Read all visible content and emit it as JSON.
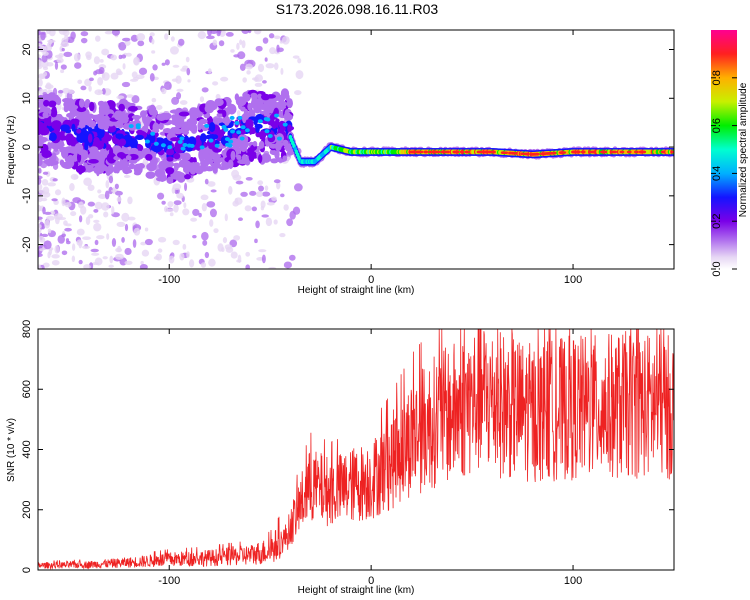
{
  "title": "S173.2026.098.16.11.R03",
  "chart_data": [
    {
      "type": "heatmap",
      "xlabel": "Height of straight line (km)",
      "ylabel": "Frequency (Hz)",
      "xlim": [
        -165,
        150
      ],
      "ylim": [
        -25,
        24
      ],
      "xticks": [
        -100,
        0,
        100
      ],
      "yticks": [
        -20,
        -10,
        0,
        10,
        20
      ],
      "colorbar": {
        "label": "Normalized spectral amplitude",
        "range": [
          0,
          1
        ],
        "ticks": [
          "0.0",
          "0.2",
          "0.4",
          "0.6",
          "0.8"
        ],
        "tick_values": [
          0.0,
          0.2,
          0.4,
          0.6,
          0.8
        ]
      },
      "ridge": {
        "description_points_x": [
          -165,
          -140,
          -120,
          -100,
          -80,
          -60,
          -42,
          -35,
          -28,
          -20,
          -10,
          0,
          20,
          40,
          60,
          80,
          100,
          120,
          150
        ],
        "description_points_y": [
          4,
          2,
          2,
          0,
          2,
          4,
          4,
          -3,
          -3,
          0,
          -1,
          -1,
          -1,
          -1,
          -1,
          -1.5,
          -1,
          -1,
          -1
        ]
      }
    },
    {
      "type": "line",
      "xlabel": "Height of straight line (km)",
      "ylabel": "SNR (10 * v/v)",
      "xlim": [
        -165,
        150
      ],
      "ylim": [
        0,
        800
      ],
      "xticks": [
        -100,
        0,
        100
      ],
      "yticks": [
        0,
        200,
        400,
        600,
        800
      ],
      "series": [
        {
          "name": "SNR",
          "color": "#ee2222",
          "envelope_x": [
            -165,
            -140,
            -120,
            -100,
            -80,
            -60,
            -50,
            -42,
            -35,
            -30,
            -20,
            -10,
            0,
            10,
            20,
            30,
            40,
            50,
            55,
            60,
            70,
            80,
            90,
            100,
            110,
            120,
            130,
            150
          ],
          "envelope_y": [
            15,
            18,
            25,
            35,
            40,
            50,
            65,
            110,
            220,
            280,
            260,
            280,
            300,
            360,
            440,
            490,
            520,
            560,
            580,
            560,
            540,
            520,
            530,
            540,
            540,
            545,
            550,
            540
          ]
        }
      ]
    }
  ]
}
